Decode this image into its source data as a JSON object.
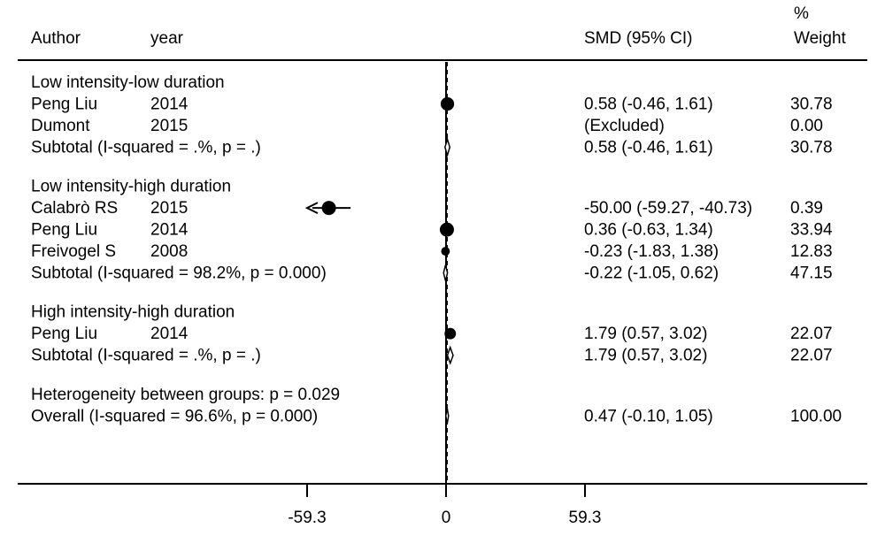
{
  "chart_data": {
    "type": "forest",
    "title": "",
    "measure": "SMD",
    "headers": {
      "author": "Author",
      "year": "year",
      "effect": "SMD (95% CI)",
      "weight_line1": "%",
      "weight_line2": "Weight"
    },
    "xlim": [
      -59.3,
      59.3
    ],
    "x_ticks": [
      "-59.3",
      "0",
      "59.3"
    ],
    "null_line": 0,
    "overall_line": 0.47,
    "groups": [
      {
        "name": "Low intensity-low duration",
        "studies": [
          {
            "author": "Peng Liu",
            "year": "2014",
            "estimate": 0.58,
            "lower": -0.46,
            "upper": 1.61,
            "ci_text": "0.58 (-0.46, 1.61)",
            "weight": "30.78"
          },
          {
            "author": "Dumont",
            "year": "2015",
            "estimate": null,
            "lower": null,
            "upper": null,
            "ci_text": "(Excluded)",
            "weight": "0.00"
          }
        ],
        "subtotal": {
          "label": "Subtotal  (I-squared = .%, p = .)",
          "estimate": 0.58,
          "lower": -0.46,
          "upper": 1.61,
          "ci_text": "0.58 (-0.46, 1.61)",
          "weight": "30.78"
        }
      },
      {
        "name": "Low intensity-high duration",
        "studies": [
          {
            "author": "Calabrò RS",
            "year": "2015",
            "estimate": -50.0,
            "lower": -59.27,
            "upper": -40.73,
            "ci_text": "-50.00 (-59.27, -40.73)",
            "weight": "0.39",
            "truncated_left": true
          },
          {
            "author": "Peng Liu",
            "year": "2014",
            "estimate": 0.36,
            "lower": -0.63,
            "upper": 1.34,
            "ci_text": "0.36 (-0.63, 1.34)",
            "weight": "33.94"
          },
          {
            "author": "Freivogel S",
            "year": "2008",
            "estimate": -0.23,
            "lower": -1.83,
            "upper": 1.38,
            "ci_text": "-0.23 (-1.83, 1.38)",
            "weight": "12.83"
          }
        ],
        "subtotal": {
          "label": "Subtotal  (I-squared = 98.2%, p = 0.000)",
          "estimate": -0.22,
          "lower": -1.05,
          "upper": 0.62,
          "ci_text": "-0.22 (-1.05, 0.62)",
          "weight": "47.15"
        }
      },
      {
        "name": "High intensity-high duration",
        "studies": [
          {
            "author": "Peng Liu",
            "year": "2014",
            "estimate": 1.79,
            "lower": 0.57,
            "upper": 3.02,
            "ci_text": "1.79 (0.57, 3.02)",
            "weight": "22.07"
          }
        ],
        "subtotal": {
          "label": "Subtotal  (I-squared = .%, p = .)",
          "estimate": 1.79,
          "lower": 0.57,
          "upper": 3.02,
          "ci_text": "1.79 (0.57, 3.02)",
          "weight": "22.07"
        }
      }
    ],
    "heterogeneity": "Heterogeneity between groups: p = 0.029",
    "overall": {
      "label": "Overall  (I-squared = 96.6%, p = 0.000)",
      "estimate": 0.47,
      "lower": -0.1,
      "upper": 1.05,
      "ci_text": "0.47 (-0.10, 1.05)",
      "weight": "100.00"
    }
  }
}
